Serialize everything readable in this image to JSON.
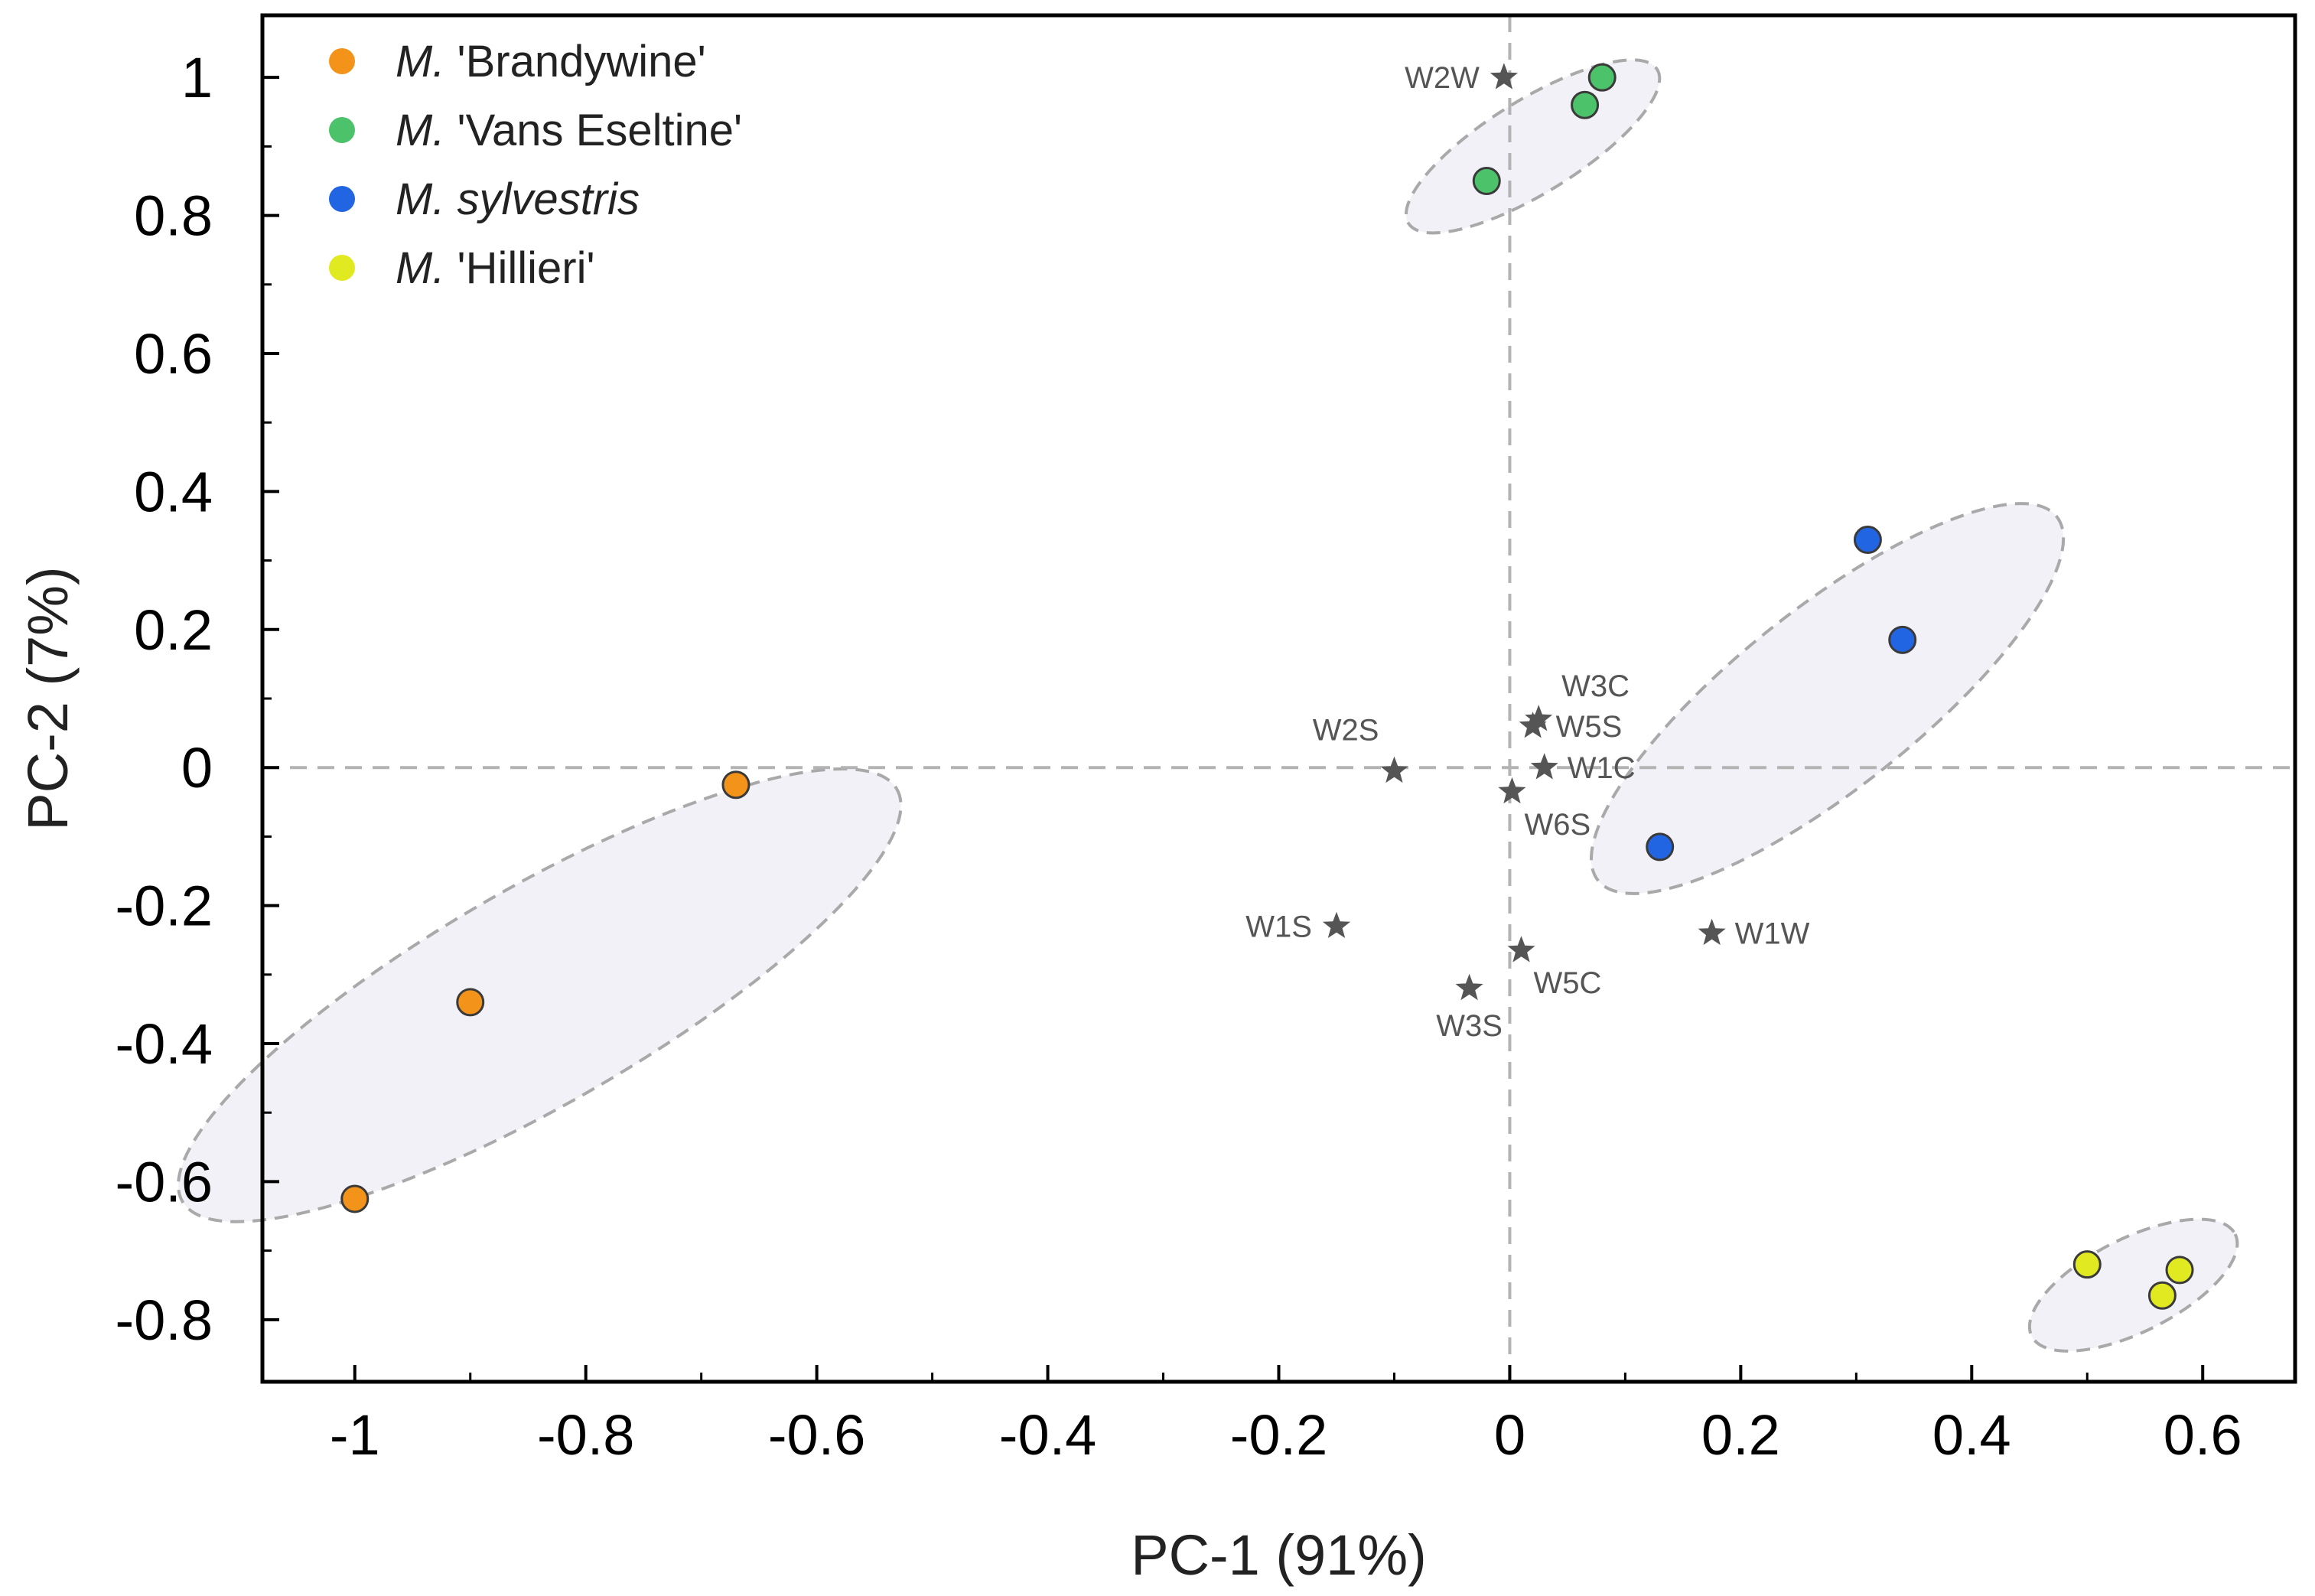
{
  "chart_data": {
    "type": "scatter",
    "xlabel": "PC-1 (91%)",
    "ylabel": "PC-2 (7%)",
    "xlim": [
      -1.08,
      0.68
    ],
    "ylim": [
      -0.89,
      1.09
    ],
    "xticks": [
      -1,
      -0.8,
      -0.6,
      -0.4,
      -0.2,
      0,
      0.2,
      0.4,
      0.6
    ],
    "yticks": [
      -0.8,
      -0.6,
      -0.4,
      -0.2,
      0,
      0.2,
      0.4,
      0.6,
      0.8,
      1
    ],
    "zero_lines": true,
    "legend_position": "top-left",
    "series": [
      {
        "name_prefix": "M.",
        "name_rest": " 'Brandywine'",
        "name_style": "plain",
        "color": "#F39319",
        "points": [
          [
            -1.0,
            -0.625
          ],
          [
            -0.9,
            -0.34
          ],
          [
            -0.67,
            -0.025
          ]
        ],
        "ellipse": {
          "cx": -0.84,
          "cy": -0.33,
          "rx": 0.43,
          "ry": 0.13,
          "angle_deg": 44
        }
      },
      {
        "name_prefix": "M.",
        "name_rest": " 'Vans Eseltine'",
        "name_style": "plain",
        "color": "#4CC26A",
        "points": [
          [
            -0.02,
            0.85
          ],
          [
            0.065,
            0.96
          ],
          [
            0.08,
            1.0
          ]
        ],
        "ellipse": {
          "cx": 0.02,
          "cy": 0.9,
          "rx": 0.155,
          "ry": 0.055,
          "angle_deg": 46
        }
      },
      {
        "name_prefix": "M.",
        "name_rest": "sylvestris",
        "name_style": "italic",
        "color": "#2165E3",
        "points": [
          [
            0.13,
            -0.115
          ],
          [
            0.31,
            0.33
          ],
          [
            0.34,
            0.185
          ]
        ],
        "ellipse": {
          "cx": 0.275,
          "cy": 0.1,
          "rx": 0.33,
          "ry": 0.1,
          "angle_deg": 53
        }
      },
      {
        "name_prefix": "M.",
        "name_rest": " 'Hillieri'",
        "name_style": "plain",
        "color": "#E1E921",
        "points": [
          [
            0.5,
            -0.72
          ],
          [
            0.565,
            -0.765
          ],
          [
            0.58,
            -0.728
          ]
        ],
        "ellipse": {
          "cx": 0.54,
          "cy": -0.75,
          "rx": 0.115,
          "ry": 0.058,
          "angle_deg": 40
        }
      }
    ],
    "variables": [
      {
        "label": "W2W",
        "x": -0.005,
        "y": 1.0,
        "anchor": "left"
      },
      {
        "label": "W3C",
        "x": 0.025,
        "y": 0.07,
        "anchor": "above"
      },
      {
        "label": "W5S",
        "x": 0.02,
        "y": 0.06,
        "anchor": "right"
      },
      {
        "label": "W2S",
        "x": -0.1,
        "y": -0.005,
        "anchor": "above-left"
      },
      {
        "label": "W1C",
        "x": 0.03,
        "y": 0.0,
        "anchor": "right"
      },
      {
        "label": "W6S",
        "x": 0.002,
        "y": -0.035,
        "anchor": "below-right"
      },
      {
        "label": "W1S",
        "x": -0.15,
        "y": -0.23,
        "anchor": "left"
      },
      {
        "label": "W5C",
        "x": 0.01,
        "y": -0.265,
        "anchor": "below-right"
      },
      {
        "label": "W3S",
        "x": -0.035,
        "y": -0.32,
        "anchor": "below"
      },
      {
        "label": "W1W",
        "x": 0.175,
        "y": -0.24,
        "anchor": "right"
      }
    ]
  }
}
